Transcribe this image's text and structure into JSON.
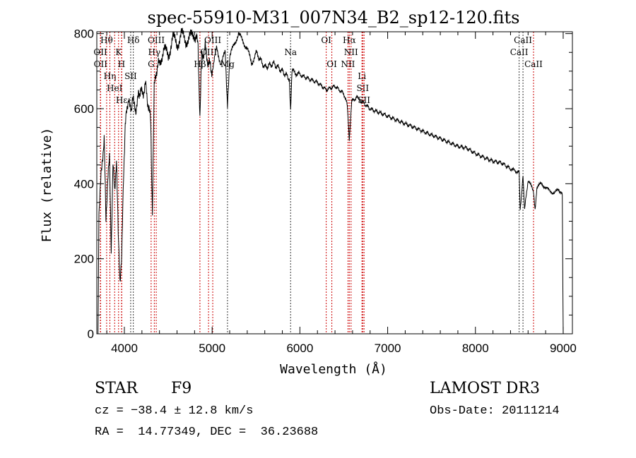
{
  "chart_data": {
    "type": "line",
    "title": "spec-55910-M31_007N34_B2_sp12-120.fits",
    "xlabel": "Wavelength (Å)",
    "ylabel": "Flux (relative)",
    "xlim": [
      3686,
      9105
    ],
    "ylim": [
      0,
      805
    ],
    "xticks": [
      4000,
      5000,
      6000,
      7000,
      8000,
      9000
    ],
    "xtick_labels": [
      "4000",
      "5000",
      "6000",
      "7000",
      "8000",
      "9000"
    ],
    "yticks": [
      0,
      200,
      400,
      600,
      800
    ],
    "ytick_labels": [
      "0",
      "200",
      "400",
      "600",
      "800"
    ],
    "grid": false,
    "series": [
      {
        "name": "spectrum",
        "x": [
          3700,
          3710,
          3730,
          3750,
          3770,
          3790,
          3810,
          3830,
          3850,
          3870,
          3890,
          3910,
          3930,
          3950,
          3970,
          3990,
          4010,
          4030,
          4050,
          4080,
          4100,
          4130,
          4160,
          4200,
          4240,
          4280,
          4300,
          4320,
          4340,
          4360,
          4400,
          4450,
          4500,
          4550,
          4600,
          4650,
          4700,
          4750,
          4800,
          4840,
          4861,
          4880,
          4920,
          4960,
          5000,
          5050,
          5100,
          5150,
          5175,
          5200,
          5250,
          5300,
          5350,
          5400,
          5450,
          5500,
          5600,
          5700,
          5800,
          5880,
          5894,
          5910,
          6000,
          6100,
          6200,
          6300,
          6400,
          6500,
          6540,
          6563,
          6590,
          6650,
          6700,
          6800,
          6900,
          7000,
          7100,
          7200,
          7300,
          7400,
          7500,
          7600,
          7700,
          7800,
          7900,
          8000,
          8100,
          8200,
          8300,
          8400,
          8498,
          8510,
          8542,
          8560,
          8600,
          8662,
          8680,
          8700,
          8750,
          8800,
          8850,
          8900,
          8950,
          8990,
          9000
        ],
        "y": [
          0,
          330,
          400,
          470,
          520,
          300,
          420,
          460,
          230,
          450,
          380,
          470,
          260,
          150,
          200,
          420,
          560,
          590,
          640,
          600,
          620,
          580,
          650,
          640,
          660,
          600,
          560,
          330,
          650,
          700,
          720,
          760,
          740,
          790,
          770,
          800,
          780,
          790,
          800,
          770,
          560,
          740,
          760,
          720,
          700,
          760,
          720,
          750,
          600,
          740,
          770,
          800,
          780,
          760,
          720,
          750,
          710,
          720,
          700,
          680,
          600,
          700,
          690,
          680,
          670,
          650,
          660,
          640,
          610,
          520,
          620,
          630,
          620,
          600,
          590,
          580,
          570,
          560,
          550,
          540,
          530,
          520,
          510,
          500,
          495,
          480,
          470,
          460,
          455,
          440,
          430,
          330,
          420,
          330,
          410,
          380,
          330,
          390,
          400,
          390,
          380,
          375,
          385,
          370,
          0
        ]
      }
    ],
    "line_markers": [
      {
        "wavelength": 3727,
        "label": "OII",
        "row": 2,
        "color": "#cc0000"
      },
      {
        "wavelength": 3729,
        "label": "OII",
        "row": 3,
        "color": "#cc0000"
      },
      {
        "wavelength": 3798,
        "label": "Hθ",
        "row": 1,
        "color": "#cc0000"
      },
      {
        "wavelength": 3835,
        "label": "Hη",
        "row": 3,
        "color": "#cc0000"
      },
      {
        "wavelength": 3889,
        "label": "HeI",
        "row": 2,
        "color": "#cc0000"
      },
      {
        "wavelength": 3934,
        "label": "K",
        "row": 1,
        "color": "#cc0000"
      },
      {
        "wavelength": 3968,
        "label": "H",
        "row": 3,
        "color": "#cc0000"
      },
      {
        "wavelength": 3970,
        "label": "Hε",
        "row": 3,
        "color": "#cc0000"
      },
      {
        "wavelength": 4072,
        "label": "SII",
        "row": 2,
        "color": "#000000"
      },
      {
        "wavelength": 4102,
        "label": "Hδ",
        "row": 1,
        "color": "#000000"
      },
      {
        "wavelength": 4305,
        "label": "G",
        "row": 3,
        "color": "#cc0000"
      },
      {
        "wavelength": 4341,
        "label": "Hγ",
        "row": 2,
        "color": "#cc0000"
      },
      {
        "wavelength": 4363,
        "label": "OIII",
        "row": 1,
        "color": "#cc0000"
      },
      {
        "wavelength": 4861,
        "label": "Hβ",
        "row": 3,
        "color": "#cc0000"
      },
      {
        "wavelength": 4959,
        "label": "OIII",
        "row": 2,
        "color": "#cc0000"
      },
      {
        "wavelength": 5007,
        "label": "OIII",
        "row": 1,
        "color": "#cc0000"
      },
      {
        "wavelength": 5175,
        "label": "Mg",
        "row": 3,
        "color": "#000000"
      },
      {
        "wavelength": 5894,
        "label": "Na",
        "row": 2,
        "color": "#000000"
      },
      {
        "wavelength": 6300,
        "label": "OI",
        "row": 1,
        "color": "#cc0000"
      },
      {
        "wavelength": 6364,
        "label": "OI",
        "row": 3,
        "color": "#cc0000"
      },
      {
        "wavelength": 6548,
        "label": "NII",
        "row": 3,
        "color": "#cc0000"
      },
      {
        "wavelength": 6563,
        "label": "Hα",
        "row": 1,
        "color": "#cc0000"
      },
      {
        "wavelength": 6583,
        "label": "NII",
        "row": 2,
        "color": "#cc0000"
      },
      {
        "wavelength": 6707,
        "label": "Li",
        "row": 2,
        "color": "#cc0000"
      },
      {
        "wavelength": 6716,
        "label": "SII",
        "row": 1,
        "color": "#cc0000"
      },
      {
        "wavelength": 6731,
        "label": "SII",
        "row": 3,
        "color": "#cc0000"
      },
      {
        "wavelength": 8498,
        "label": "CaII",
        "row": 2,
        "color": "#000000"
      },
      {
        "wavelength": 8542,
        "label": "CaII",
        "row": 1,
        "color": "#000000"
      },
      {
        "wavelength": 8662,
        "label": "CaII",
        "row": 3,
        "color": "#cc0000"
      }
    ]
  },
  "info": {
    "object_class": "STAR",
    "subclass": "F9",
    "survey": "LAMOST DR3",
    "redshift_line": "cz = −38.4 ± 12.8 km/s",
    "obs_date": "Obs-Date: 20111214",
    "coords": "RA =  14.77349, DEC =  36.23688"
  }
}
